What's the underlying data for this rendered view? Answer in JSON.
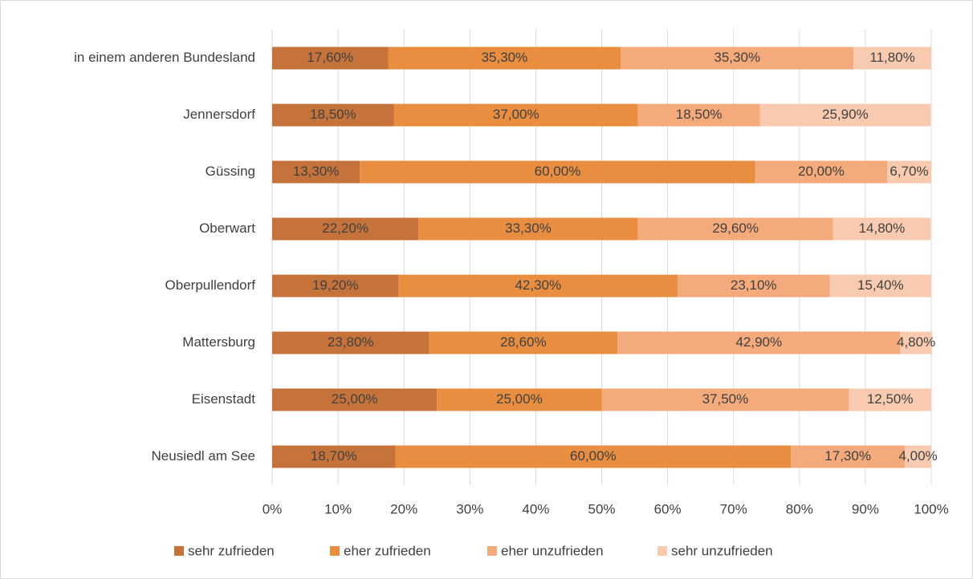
{
  "chart_data": {
    "type": "stacked-barh",
    "categories": [
      "in einem anderen Bundesland",
      "Jennersdorf",
      "Güssing",
      "Oberwart",
      "Oberpullendorf",
      "Mattersburg",
      "Eisenstadt",
      "Neusiedl am See"
    ],
    "series": [
      {
        "name": "sehr zufrieden",
        "color": "#c5733a",
        "values": [
          17.6,
          18.5,
          13.3,
          22.2,
          19.2,
          23.8,
          25.0,
          18.7
        ],
        "value_labels": [
          "17,60%",
          "18,50%",
          "13,30%",
          "22,20%",
          "19,20%",
          "23,80%",
          "25,00%",
          "18,70%"
        ]
      },
      {
        "name": "eher zufrieden",
        "color": "#e98d41",
        "values": [
          35.3,
          37.0,
          60.0,
          33.3,
          42.3,
          28.6,
          25.0,
          60.0
        ],
        "value_labels": [
          "35,30%",
          "37,00%",
          "60,00%",
          "33,30%",
          "42,30%",
          "28,60%",
          "25,00%",
          "60,00%"
        ]
      },
      {
        "name": "eher unzufrieden",
        "color": "#f4aa7b",
        "values": [
          35.3,
          18.5,
          20.0,
          29.6,
          23.1,
          42.9,
          37.5,
          17.3
        ],
        "value_labels": [
          "35,30%",
          "18,50%",
          "20,00%",
          "29,60%",
          "23,10%",
          "42,90%",
          "37,50%",
          "17,30%"
        ]
      },
      {
        "name": "sehr unzufrieden",
        "color": "#f8cbb1",
        "values": [
          11.8,
          25.9,
          6.7,
          14.8,
          15.4,
          4.8,
          12.5,
          4.0
        ],
        "value_labels": [
          "11,80%",
          "25,90%",
          "6,70%",
          "14,80%",
          "15,40%",
          "4,80%",
          "12,50%",
          "4,00%"
        ]
      }
    ],
    "xlim": [
      0,
      100
    ],
    "xticks": [
      {
        "value": 0,
        "label": "0%"
      },
      {
        "value": 10,
        "label": "10%"
      },
      {
        "value": 20,
        "label": "20%"
      },
      {
        "value": 30,
        "label": "30%"
      },
      {
        "value": 40,
        "label": "40%"
      },
      {
        "value": 50,
        "label": "50%"
      },
      {
        "value": 60,
        "label": "60%"
      },
      {
        "value": 70,
        "label": "70%"
      },
      {
        "value": 80,
        "label": "80%"
      },
      {
        "value": 90,
        "label": "90%"
      },
      {
        "value": 100,
        "label": "100%"
      }
    ],
    "grid": true,
    "legend": "bottom"
  }
}
